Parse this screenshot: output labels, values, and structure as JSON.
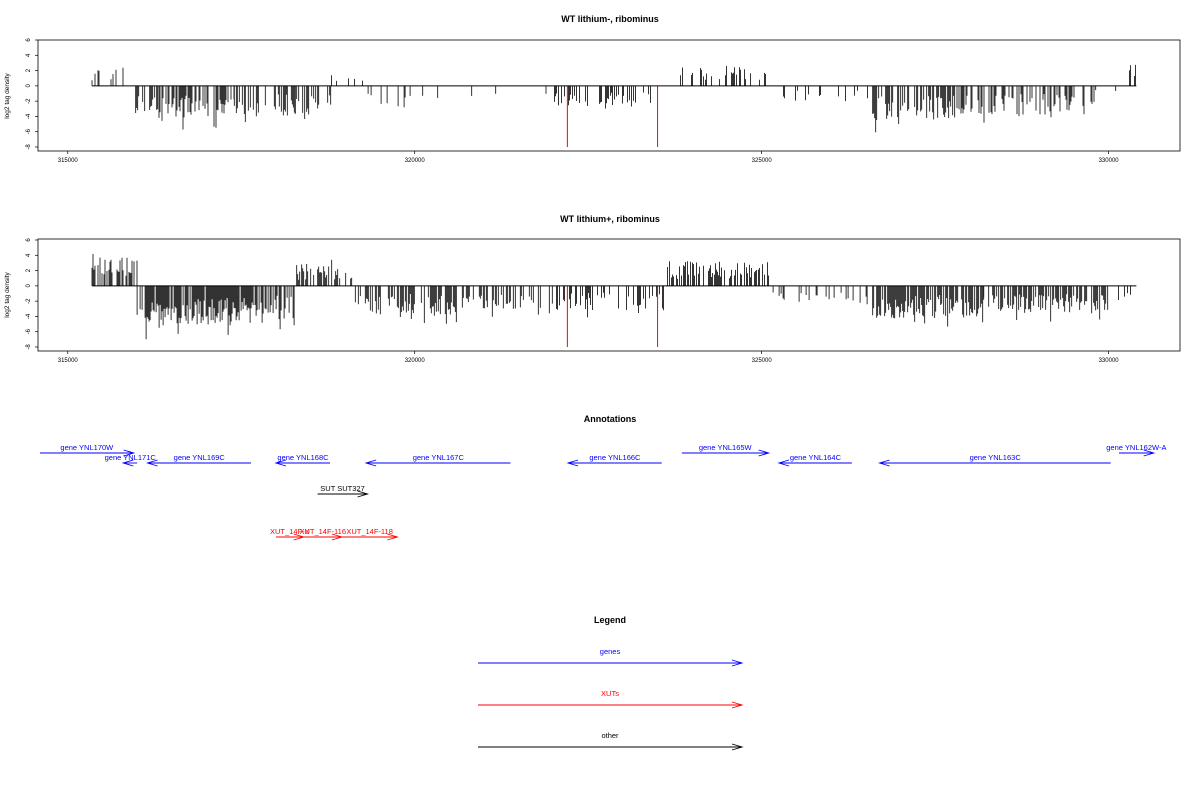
{
  "chart_data": [
    {
      "type": "bar",
      "title": "WT lithium-, ribominus",
      "xlabel": "",
      "ylabel": "log2 tag density",
      "xlim": [
        314600,
        331000
      ],
      "ylim": [
        -8,
        6
      ],
      "xticks": [
        315000,
        320000,
        325000,
        330000
      ],
      "yticks": [
        6,
        4,
        2,
        0,
        -2,
        -4,
        -6,
        -8
      ],
      "baseline": {
        "from": 315350,
        "to": 330400
      },
      "highlight_color": "#ff0000",
      "highlights": [
        {
          "x": 322200,
          "y": -8
        },
        {
          "x": 323500,
          "y": -8
        }
      ],
      "segments": [
        {
          "from": 315350,
          "to": 315950,
          "level": 2.0,
          "sign": 1,
          "density": 0.35,
          "max": 4.3
        },
        {
          "from": 315950,
          "to": 316300,
          "level": -3.0,
          "sign": -1,
          "density": 0.8,
          "max": 4.5
        },
        {
          "from": 316300,
          "to": 317400,
          "level": -3.6,
          "sign": -1,
          "density": 1.0,
          "max": 6.0
        },
        {
          "from": 317400,
          "to": 318300,
          "level": -3.2,
          "sign": -1,
          "density": 0.8,
          "max": 5.5
        },
        {
          "from": 318300,
          "to": 318800,
          "level": -3.0,
          "sign": -1,
          "density": 0.9,
          "max": 6.5
        },
        {
          "from": 318800,
          "to": 319300,
          "level": 1.5,
          "sign": 1,
          "density": 0.3,
          "max": 3.2
        },
        {
          "from": 319300,
          "to": 320000,
          "level": -2.4,
          "sign": -1,
          "density": 0.45,
          "max": 4.5
        },
        {
          "from": 320000,
          "to": 321200,
          "level": -1.5,
          "sign": -1,
          "density": 0.15,
          "max": 2.5
        },
        {
          "from": 321200,
          "to": 322000,
          "level": -0.8,
          "sign": -1,
          "density": 0.05,
          "max": 1.5
        },
        {
          "from": 322000,
          "to": 323400,
          "level": -2.2,
          "sign": -1,
          "density": 0.55,
          "max": 4.5
        },
        {
          "from": 323700,
          "to": 325100,
          "level": 2.0,
          "sign": 1,
          "density": 0.4,
          "max": 4.3
        },
        {
          "from": 325100,
          "to": 326600,
          "level": -1.6,
          "sign": -1,
          "density": 0.18,
          "max": 3.5
        },
        {
          "from": 326600,
          "to": 327800,
          "level": -3.6,
          "sign": -1,
          "density": 1.0,
          "max": 7.0
        },
        {
          "from": 327800,
          "to": 329800,
          "level": -3.0,
          "sign": -1,
          "density": 0.85,
          "max": 5.5
        },
        {
          "from": 329800,
          "to": 330300,
          "level": -1.5,
          "sign": -1,
          "density": 0.2,
          "max": 3.0
        },
        {
          "from": 330300,
          "to": 330400,
          "level": 2.3,
          "sign": 1,
          "density": 0.6,
          "max": 2.8
        }
      ]
    },
    {
      "type": "bar",
      "title": "WT lithium+, ribominus",
      "xlabel": "",
      "ylabel": "log2 tag density",
      "xlim": [
        314600,
        331000
      ],
      "ylim": [
        -8,
        6
      ],
      "xticks": [
        315000,
        320000,
        325000,
        330000
      ],
      "yticks": [
        6,
        4,
        2,
        0,
        -2,
        -4,
        -6,
        -8
      ],
      "baseline": {
        "from": 315350,
        "to": 330400
      },
      "highlight_color": "#ff0000",
      "highlights": [
        {
          "x": 322200,
          "y": -8
        },
        {
          "x": 323500,
          "y": -8
        }
      ],
      "segments": [
        {
          "from": 315350,
          "to": 316000,
          "level": 3.0,
          "sign": 1,
          "density": 1.0,
          "max": 5.0
        },
        {
          "from": 316000,
          "to": 317700,
          "level": -4.2,
          "sign": -1,
          "density": 1.6,
          "max": 7.5
        },
        {
          "from": 317700,
          "to": 318300,
          "level": -3.6,
          "sign": -1,
          "density": 1.2,
          "max": 7.5
        },
        {
          "from": 318300,
          "to": 319100,
          "level": 2.2,
          "sign": 1,
          "density": 0.8,
          "max": 5.8
        },
        {
          "from": 319100,
          "to": 320600,
          "level": -3.0,
          "sign": -1,
          "density": 1.1,
          "max": 5.5
        },
        {
          "from": 320600,
          "to": 322000,
          "level": -2.5,
          "sign": -1,
          "density": 0.7,
          "max": 4.5
        },
        {
          "from": 322000,
          "to": 323600,
          "level": -2.6,
          "sign": -1,
          "density": 0.8,
          "max": 5.0
        },
        {
          "from": 323600,
          "to": 325150,
          "level": 2.6,
          "sign": 1,
          "density": 1.0,
          "max": 5.3
        },
        {
          "from": 325150,
          "to": 326600,
          "level": -2.0,
          "sign": -1,
          "density": 0.35,
          "max": 4.0
        },
        {
          "from": 326600,
          "to": 328200,
          "level": -3.4,
          "sign": -1,
          "density": 1.3,
          "max": 7.5
        },
        {
          "from": 328200,
          "to": 330000,
          "level": -2.8,
          "sign": -1,
          "density": 1.2,
          "max": 5.5
        },
        {
          "from": 330000,
          "to": 330400,
          "level": -1.6,
          "sign": -1,
          "density": 0.3,
          "max": 4.6
        }
      ]
    }
  ],
  "annotations": {
    "title": "Annotations",
    "xlim": [
      314600,
      331000
    ],
    "items": [
      {
        "label": "gene YNL170W",
        "group": "gene",
        "dir": 1,
        "from": 314600,
        "to": 315950,
        "row": 0
      },
      {
        "label": "gene YNL171C",
        "group": "gene",
        "dir": -1,
        "from": 315800,
        "to": 316000,
        "row": 1
      },
      {
        "label": "gene YNL169C",
        "group": "gene",
        "dir": -1,
        "from": 316150,
        "to": 317640,
        "row": 1
      },
      {
        "label": "gene YNL168C",
        "group": "gene",
        "dir": -1,
        "from": 318000,
        "to": 318780,
        "row": 1
      },
      {
        "label": "gene YNL167C",
        "group": "gene",
        "dir": -1,
        "from": 319300,
        "to": 321380,
        "row": 1
      },
      {
        "label": "gene YNL166C",
        "group": "gene",
        "dir": -1,
        "from": 322210,
        "to": 323560,
        "row": 1
      },
      {
        "label": "gene YNL165W",
        "group": "gene",
        "dir": 1,
        "from": 323850,
        "to": 325100,
        "row": 0
      },
      {
        "label": "gene YNL164C",
        "group": "gene",
        "dir": -1,
        "from": 325250,
        "to": 326300,
        "row": 1
      },
      {
        "label": "gene YNL163C",
        "group": "gene",
        "dir": -1,
        "from": 326700,
        "to": 330030,
        "row": 1
      },
      {
        "label": "gene YNL162W-A",
        "group": "gene",
        "dir": 1,
        "from": 330150,
        "to": 330650,
        "row": 0
      },
      {
        "label": "SUT SUT327",
        "group": "other",
        "dir": 1,
        "from": 318600,
        "to": 319320,
        "row": 2
      },
      {
        "label": "XUT_14F-X",
        "group": "xut",
        "dir": 1,
        "from": 318000,
        "to": 318400,
        "row": 3
      },
      {
        "label": "XUT_14F-116",
        "group": "xut",
        "dir": 1,
        "from": 318400,
        "to": 318950,
        "row": 3
      },
      {
        "label": "XUT_14F-118",
        "group": "xut",
        "dir": 1,
        "from": 318950,
        "to": 319750,
        "row": 3
      }
    ]
  },
  "legend": {
    "title": "Legend",
    "items": [
      {
        "label": "genes",
        "color": "#0000ff"
      },
      {
        "label": "XUTs",
        "color": "#ff0000"
      },
      {
        "label": "other",
        "color": "#000000"
      }
    ]
  },
  "colors": {
    "gene": "#0000ff",
    "xut": "#ff0000",
    "other": "#000000"
  }
}
